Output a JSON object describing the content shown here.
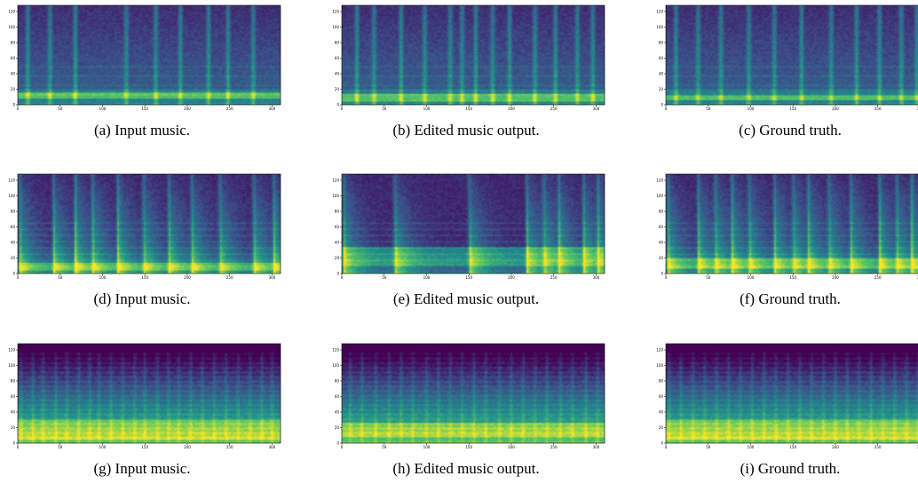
{
  "figure": {
    "subfigures": [
      {
        "label": "(a)",
        "caption": "Input music.",
        "style": "sparse",
        "seed": 11,
        "onsets": [
          12,
          38,
          68,
          128,
          163,
          192,
          225,
          248,
          278
        ],
        "bass_band": [
          8,
          16
        ]
      },
      {
        "label": "(b)",
        "caption": "Edited music output.",
        "style": "sparse",
        "seed": 21,
        "onsets": [
          18,
          38,
          70,
          98,
          128,
          142,
          158,
          178,
          198,
          228,
          252,
          278,
          296
        ],
        "bass_band": [
          4,
          14
        ]
      },
      {
        "label": "(c)",
        "caption": "Ground truth.",
        "style": "sparse",
        "seed": 31,
        "onsets": [
          12,
          38,
          65,
          98,
          128,
          160,
          195,
          225,
          252,
          278,
          296
        ],
        "bass_band": [
          6,
          12
        ]
      },
      {
        "label": "(d)",
        "caption": "Input music.",
        "style": "decay",
        "seed": 41,
        "onsets": [
          2,
          42,
          68,
          88,
          118,
          148,
          178,
          205,
          238,
          278,
          302
        ],
        "bass_band": [
          4,
          14
        ]
      },
      {
        "label": "(e)",
        "caption": "Edited music output.",
        "style": "decay",
        "seed": 51,
        "onsets": [
          2,
          62,
          150,
          218,
          238,
          256,
          285,
          302
        ],
        "bass_band": [
          10,
          34
        ]
      },
      {
        "label": "(f)",
        "caption": "Ground truth.",
        "style": "decay",
        "seed": 61,
        "onsets": [
          2,
          38,
          58,
          78,
          98,
          128,
          150,
          168,
          192,
          218,
          252,
          272,
          290
        ],
        "bass_band": [
          6,
          20
        ]
      },
      {
        "label": "(g)",
        "caption": "Input music.",
        "style": "dense",
        "seed": 71,
        "onsets": [
          4,
          18,
          30,
          45,
          58,
          72,
          85,
          96,
          110,
          124,
          138,
          150,
          165,
          178,
          190,
          204,
          218,
          232,
          246,
          260,
          274,
          288,
          300
        ],
        "bass_band": [
          4,
          30
        ]
      },
      {
        "label": "(h)",
        "caption": "Edited music output.",
        "style": "dense",
        "seed": 81,
        "onsets": [
          10,
          24,
          40,
          56,
          70,
          84,
          100,
          114,
          128,
          142,
          156,
          170,
          186,
          200,
          214,
          228,
          242,
          258,
          272,
          288,
          302
        ],
        "bass_band": [
          8,
          26
        ]
      },
      {
        "label": "(i)",
        "caption": "Ground truth.",
        "style": "dense",
        "seed": 91,
        "onsets": [
          4,
          18,
          32,
          46,
          60,
          74,
          88,
          102,
          116,
          130,
          144,
          158,
          172,
          186,
          200,
          214,
          228,
          242,
          256,
          270,
          284,
          298
        ],
        "bass_band": [
          4,
          30
        ]
      }
    ],
    "axes": {
      "x_ticks": [
        "0",
        "50",
        "100",
        "150",
        "200",
        "250",
        "300"
      ],
      "y_ticks": [
        "0",
        "20",
        "40",
        "60",
        "80",
        "100",
        "120"
      ],
      "x_range": [
        0,
        310
      ],
      "y_range": [
        0,
        128
      ]
    },
    "colormap": [
      "#440154",
      "#3b528b",
      "#21918c",
      "#5ec962",
      "#fde725"
    ]
  }
}
